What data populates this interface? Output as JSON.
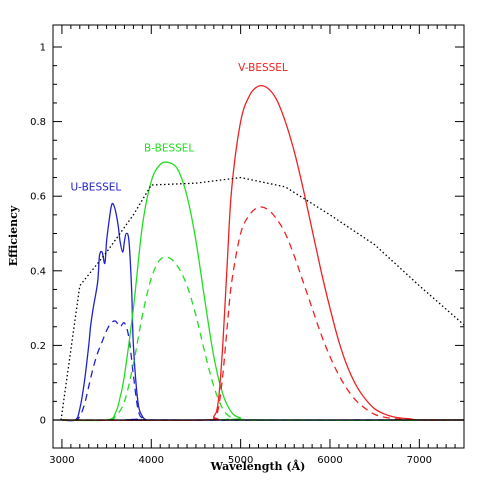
{
  "chart_data": {
    "type": "line",
    "xlabel": "Wavelength (Å)",
    "ylabel": "Efficiency",
    "xlim": [
      2900,
      7500
    ],
    "ylim": [
      0,
      1.05
    ],
    "x_ticks": [
      "3000",
      "4000",
      "5000",
      "6000",
      "7000"
    ],
    "y_ticks": [
      "0",
      "0.2",
      "0.4",
      "0.6",
      "0.8",
      "1"
    ],
    "grid": false,
    "series": [
      {
        "name": "U-BESSEL",
        "label_x": 3380,
        "label_y": 0.615,
        "color": "#2222cc",
        "dash": "solid",
        "x": [
          3000,
          3150,
          3200,
          3250,
          3300,
          3320,
          3350,
          3400,
          3420,
          3450,
          3480,
          3500,
          3520,
          3550,
          3570,
          3600,
          3630,
          3650,
          3680,
          3700,
          3720,
          3750,
          3780,
          3800,
          3850,
          3900,
          3950,
          4000,
          7500
        ],
        "y": [
          0,
          0,
          0.03,
          0.1,
          0.2,
          0.25,
          0.3,
          0.37,
          0.44,
          0.45,
          0.42,
          0.48,
          0.52,
          0.57,
          0.58,
          0.56,
          0.52,
          0.48,
          0.45,
          0.48,
          0.5,
          0.48,
          0.35,
          0.2,
          0.05,
          0.01,
          0,
          0,
          0
        ]
      },
      {
        "name": "",
        "color": "#2222cc",
        "dash": "dashed",
        "x": [
          3000,
          3150,
          3200,
          3250,
          3300,
          3350,
          3400,
          3450,
          3500,
          3550,
          3600,
          3650,
          3700,
          3750,
          3800,
          3850,
          3900,
          4000,
          7500
        ],
        "y": [
          0,
          0,
          0.01,
          0.04,
          0.09,
          0.14,
          0.18,
          0.21,
          0.24,
          0.26,
          0.265,
          0.25,
          0.26,
          0.22,
          0.12,
          0.03,
          0.005,
          0,
          0
        ]
      },
      {
        "name": "B-BESSEL",
        "label_x": 4200,
        "label_y": 0.72,
        "color": "#22dd22",
        "dash": "solid",
        "x": [
          3000,
          3500,
          3600,
          3650,
          3700,
          3800,
          3900,
          4000,
          4100,
          4200,
          4300,
          4400,
          4500,
          4600,
          4700,
          4800,
          4900,
          5000,
          5100,
          7500
        ],
        "y": [
          0,
          0,
          0.02,
          0.06,
          0.12,
          0.3,
          0.52,
          0.64,
          0.685,
          0.69,
          0.67,
          0.6,
          0.48,
          0.32,
          0.17,
          0.07,
          0.02,
          0.005,
          0,
          0
        ]
      },
      {
        "name": "",
        "color": "#22dd22",
        "dash": "dashed",
        "x": [
          3000,
          3500,
          3600,
          3700,
          3800,
          3900,
          4000,
          4100,
          4200,
          4300,
          4400,
          4500,
          4600,
          4700,
          4800,
          4900,
          5000,
          7500
        ],
        "y": [
          0,
          0,
          0.01,
          0.05,
          0.15,
          0.28,
          0.38,
          0.43,
          0.435,
          0.41,
          0.36,
          0.28,
          0.18,
          0.09,
          0.03,
          0.005,
          0,
          0
        ]
      },
      {
        "name": "V-BESSEL",
        "label_x": 5250,
        "label_y": 0.935,
        "color": "#ee2222",
        "dash": "solid",
        "x": [
          3000,
          4600,
          4700,
          4750,
          4800,
          4850,
          4900,
          5000,
          5100,
          5200,
          5300,
          5400,
          5500,
          5600,
          5700,
          5800,
          5900,
          6000,
          6100,
          6200,
          6300,
          6400,
          6500,
          6600,
          6700,
          6800,
          6900,
          7000,
          7500
        ],
        "y": [
          0,
          0,
          0.01,
          0.05,
          0.2,
          0.42,
          0.62,
          0.8,
          0.87,
          0.895,
          0.89,
          0.86,
          0.8,
          0.72,
          0.62,
          0.51,
          0.4,
          0.3,
          0.21,
          0.14,
          0.09,
          0.055,
          0.03,
          0.017,
          0.009,
          0.005,
          0.003,
          0,
          0
        ]
      },
      {
        "name": "",
        "color": "#ee2222",
        "dash": "dashed",
        "x": [
          3000,
          4600,
          4700,
          4750,
          4800,
          4850,
          4900,
          5000,
          5100,
          5200,
          5300,
          5400,
          5500,
          5600,
          5700,
          5800,
          5900,
          6000,
          6100,
          6200,
          6300,
          6400,
          6500,
          6600,
          6700,
          6800,
          7000,
          7500
        ],
        "y": [
          0,
          0,
          0.005,
          0.03,
          0.12,
          0.25,
          0.37,
          0.5,
          0.55,
          0.57,
          0.565,
          0.54,
          0.5,
          0.44,
          0.37,
          0.3,
          0.23,
          0.17,
          0.12,
          0.08,
          0.05,
          0.03,
          0.015,
          0.008,
          0.004,
          0.002,
          0,
          0
        ]
      },
      {
        "name": "",
        "color": "#000000",
        "dash": "dotted",
        "x": [
          2990,
          3200,
          3500,
          3800,
          4000,
          4500,
          5000,
          5500,
          6000,
          6500,
          7000,
          7500
        ],
        "y": [
          0,
          0.36,
          0.45,
          0.55,
          0.63,
          0.635,
          0.65,
          0.625,
          0.55,
          0.47,
          0.36,
          0.255
        ]
      }
    ]
  }
}
